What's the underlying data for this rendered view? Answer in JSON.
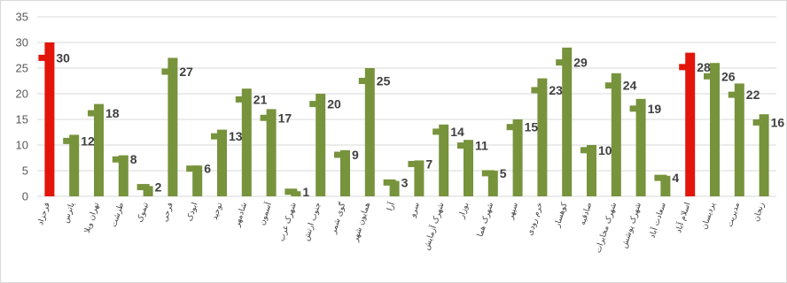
{
  "chart_data": {
    "type": "bar",
    "title": "",
    "xlabel": "",
    "ylabel": "",
    "ylim": [
      0,
      35
    ],
    "yticks": [
      0,
      5,
      10,
      15,
      20,
      25,
      30,
      35
    ],
    "grid": true,
    "legend": "none",
    "colors": {
      "default": "#77933c",
      "highlight": "#e3140a"
    },
    "categories": [
      "فرحزاد",
      "پاترس",
      "تهران ویلا",
      "طرشت",
      "تیموک",
      "فرحی",
      "ابوذک",
      "توحید",
      "شادمهر",
      "آسمون",
      "شهرک غرب",
      "جنوب ارتش",
      "گوی شمر",
      "همایون شهر",
      "آرا",
      "سرو",
      "شهرک آزمایش",
      "بوزار",
      "شهرک هما",
      "سپهر",
      "خرم رودی",
      "کوهسار",
      "صادقیه",
      "شهرک مخابرات",
      "شهرک پوشش",
      "سعادت آباد",
      "اسلام آباد",
      "پردیسان",
      "مدیریت",
      "زنجان"
    ],
    "values": [
      30,
      12,
      18,
      8,
      2,
      27,
      6,
      13,
      21,
      17,
      1,
      20,
      9,
      25,
      3,
      7,
      14,
      11,
      5,
      15,
      23,
      29,
      10,
      24,
      19,
      4,
      28,
      26,
      22,
      16
    ],
    "highlighted": [
      0,
      26
    ],
    "data_labels": [
      "30",
      "12",
      "18",
      "8",
      "2",
      "27",
      "6",
      "13",
      "21",
      "17",
      "1",
      "20",
      "9",
      "25",
      "3",
      "7",
      "14",
      "11",
      "5",
      "15",
      "23",
      "29",
      "10",
      "24",
      "19",
      "4",
      "28",
      "26",
      "22",
      "16"
    ]
  }
}
